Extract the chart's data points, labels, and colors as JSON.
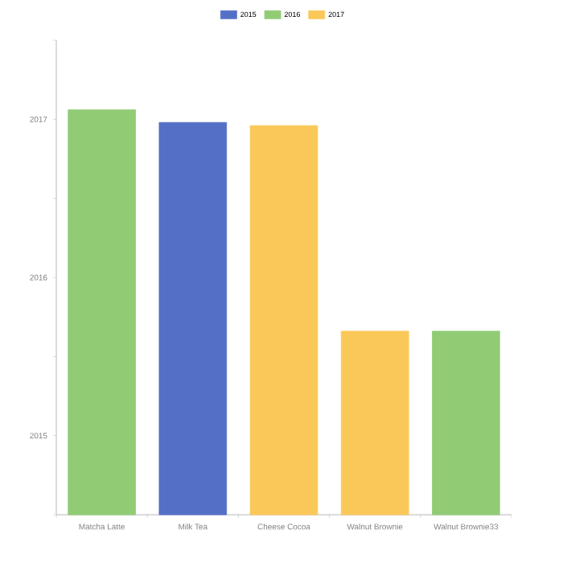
{
  "chart_data": {
    "type": "bar",
    "categories": [
      "Matcha Latte",
      "Milk Tea",
      "Cheese Cocoa",
      "Walnut Brownie",
      "Walnut Brownie33"
    ],
    "series": [
      {
        "name": "2015",
        "color": "#5470c6",
        "values": [
          null,
          2016.98,
          null,
          null,
          null
        ]
      },
      {
        "name": "2016",
        "color": "#91cc75",
        "values": [
          2017.06,
          null,
          null,
          null,
          2015.66
        ]
      },
      {
        "name": "2017",
        "color": "#fac858",
        "values": [
          null,
          null,
          2016.96,
          2015.66,
          null
        ]
      }
    ],
    "ylim": [
      2014.5,
      2017.5
    ],
    "yticks": [
      {
        "value": 2014.5,
        "label": null
      },
      2015,
      {
        "value": 2015.5,
        "label": null
      },
      2016,
      {
        "value": 2016.5,
        "label": null
      },
      2017,
      {
        "value": 2017.5,
        "label": null
      }
    ],
    "legend": "top",
    "grid": false
  }
}
